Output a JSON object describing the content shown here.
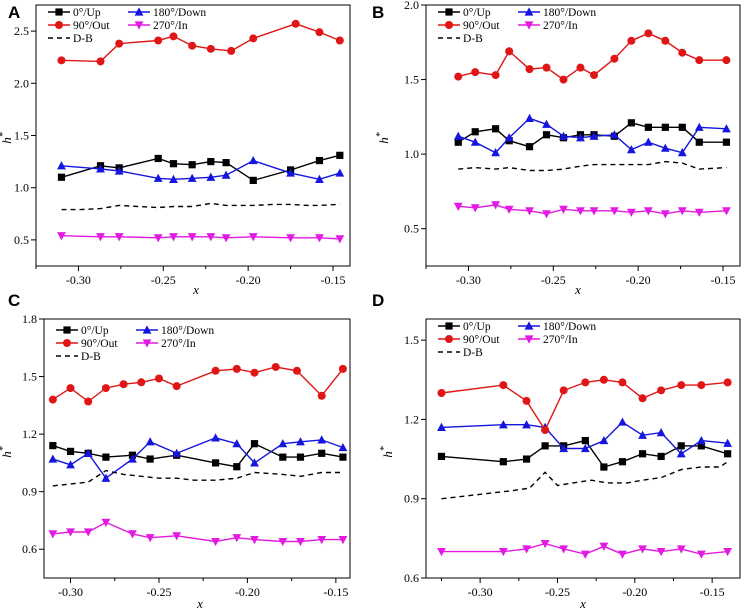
{
  "chart_data": [
    {
      "panel": "A",
      "type": "line",
      "xlabel": "x",
      "ylabel": "h*",
      "xlim": [
        -0.325,
        -0.14
      ],
      "ylim": [
        0.25,
        2.75
      ],
      "xticks": [
        -0.3,
        -0.25,
        -0.2,
        -0.15
      ],
      "xtick_labels": [
        "-0.30",
        "-0.25",
        "-0.20",
        "-0.15"
      ],
      "yticks": [
        0.5,
        1.0,
        1.5,
        2.0,
        2.5
      ],
      "ytick_labels": [
        "0.5",
        "1.0",
        "1.5",
        "2.0",
        "2.5"
      ],
      "legend": [
        "0°/Up",
        "180°/Down",
        "90°/Out",
        "270°/In",
        "D-B"
      ],
      "series": [
        {
          "name": "0°/Up",
          "color": "#000000",
          "marker": "square",
          "x": [
            -0.31,
            -0.287,
            -0.276,
            -0.253,
            -0.244,
            -0.233,
            -0.222,
            -0.213,
            -0.197,
            -0.175,
            -0.158,
            -0.146
          ],
          "y": [
            1.1,
            1.21,
            1.19,
            1.28,
            1.23,
            1.22,
            1.25,
            1.24,
            1.07,
            1.17,
            1.26,
            1.31
          ]
        },
        {
          "name": "180°/Down",
          "color": "#1515e0",
          "marker": "triangle-up",
          "x": [
            -0.31,
            -0.287,
            -0.276,
            -0.253,
            -0.244,
            -0.233,
            -0.222,
            -0.213,
            -0.197,
            -0.175,
            -0.158,
            -0.146
          ],
          "y": [
            1.21,
            1.18,
            1.16,
            1.09,
            1.08,
            1.09,
            1.1,
            1.12,
            1.26,
            1.14,
            1.08,
            1.14
          ]
        },
        {
          "name": "90°/Out",
          "color": "#e01515",
          "marker": "circle",
          "x": [
            -0.31,
            -0.287,
            -0.276,
            -0.253,
            -0.244,
            -0.233,
            -0.222,
            -0.21,
            -0.197,
            -0.172,
            -0.158,
            -0.146
          ],
          "y": [
            2.22,
            2.21,
            2.38,
            2.41,
            2.45,
            2.36,
            2.33,
            2.31,
            2.43,
            2.57,
            2.49,
            2.41
          ]
        },
        {
          "name": "270°/In",
          "color": "#e21ae2",
          "marker": "triangle-down",
          "x": [
            -0.31,
            -0.287,
            -0.276,
            -0.253,
            -0.244,
            -0.233,
            -0.222,
            -0.213,
            -0.197,
            -0.175,
            -0.158,
            -0.146
          ],
          "y": [
            0.54,
            0.53,
            0.53,
            0.52,
            0.53,
            0.53,
            0.53,
            0.52,
            0.53,
            0.52,
            0.52,
            0.51
          ]
        },
        {
          "name": "D-B",
          "color": "#000000",
          "marker": "none",
          "dash": "dashed",
          "x": [
            -0.31,
            -0.299,
            -0.287,
            -0.276,
            -0.265,
            -0.253,
            -0.244,
            -0.233,
            -0.222,
            -0.213,
            -0.205,
            -0.197,
            -0.185,
            -0.175,
            -0.165,
            -0.158,
            -0.146
          ],
          "y": [
            0.79,
            0.79,
            0.8,
            0.83,
            0.82,
            0.81,
            0.82,
            0.82,
            0.85,
            0.83,
            0.83,
            0.83,
            0.84,
            0.84,
            0.83,
            0.83,
            0.84
          ]
        }
      ]
    },
    {
      "panel": "B",
      "type": "line",
      "xlabel": "x",
      "ylabel": "h*",
      "xlim": [
        -0.325,
        -0.14
      ],
      "ylim": [
        0.25,
        2.0
      ],
      "xticks": [
        -0.3,
        -0.25,
        -0.2,
        -0.15
      ],
      "xtick_labels": [
        "-0.30",
        "-0.25",
        "-0.20",
        "-0.15"
      ],
      "yticks": [
        0.5,
        1.0,
        1.5,
        2.0
      ],
      "ytick_labels": [
        "0.5",
        "1.0",
        "1.5",
        "2.0"
      ],
      "legend": [
        "0°/Up",
        "180°/Down",
        "90°/Out",
        "270°/In",
        "D-B"
      ],
      "series": [
        {
          "name": "0°/Up",
          "color": "#000000",
          "marker": "square",
          "x": [
            -0.306,
            -0.296,
            -0.284,
            -0.276,
            -0.264,
            -0.254,
            -0.244,
            -0.234,
            -0.226,
            -0.214,
            -0.204,
            -0.194,
            -0.184,
            -0.174,
            -0.164,
            -0.148
          ],
          "y": [
            1.08,
            1.15,
            1.17,
            1.09,
            1.05,
            1.13,
            1.11,
            1.13,
            1.13,
            1.12,
            1.21,
            1.18,
            1.18,
            1.18,
            1.08,
            1.08
          ]
        },
        {
          "name": "180°/Down",
          "color": "#1515e0",
          "marker": "triangle-up",
          "x": [
            -0.306,
            -0.296,
            -0.284,
            -0.276,
            -0.264,
            -0.254,
            -0.244,
            -0.234,
            -0.226,
            -0.214,
            -0.204,
            -0.194,
            -0.184,
            -0.174,
            -0.164,
            -0.148
          ],
          "y": [
            1.12,
            1.08,
            1.01,
            1.11,
            1.24,
            1.2,
            1.12,
            1.11,
            1.12,
            1.13,
            1.03,
            1.08,
            1.04,
            1.01,
            1.18,
            1.17
          ]
        },
        {
          "name": "90°/Out",
          "color": "#e01515",
          "marker": "circle",
          "x": [
            -0.306,
            -0.296,
            -0.284,
            -0.276,
            -0.264,
            -0.254,
            -0.244,
            -0.234,
            -0.226,
            -0.214,
            -0.204,
            -0.194,
            -0.184,
            -0.174,
            -0.164,
            -0.148
          ],
          "y": [
            1.52,
            1.55,
            1.53,
            1.69,
            1.57,
            1.58,
            1.5,
            1.58,
            1.53,
            1.64,
            1.76,
            1.81,
            1.76,
            1.68,
            1.63,
            1.63
          ]
        },
        {
          "name": "270°/In",
          "color": "#e21ae2",
          "marker": "triangle-down",
          "x": [
            -0.306,
            -0.296,
            -0.284,
            -0.276,
            -0.264,
            -0.254,
            -0.244,
            -0.234,
            -0.226,
            -0.214,
            -0.204,
            -0.194,
            -0.184,
            -0.174,
            -0.164,
            -0.148
          ],
          "y": [
            0.65,
            0.64,
            0.66,
            0.63,
            0.62,
            0.6,
            0.63,
            0.62,
            0.62,
            0.62,
            0.61,
            0.62,
            0.6,
            0.62,
            0.61,
            0.62
          ]
        },
        {
          "name": "D-B",
          "color": "#000000",
          "marker": "none",
          "dash": "dashed",
          "x": [
            -0.306,
            -0.296,
            -0.284,
            -0.276,
            -0.264,
            -0.254,
            -0.244,
            -0.234,
            -0.226,
            -0.214,
            -0.204,
            -0.194,
            -0.184,
            -0.174,
            -0.164,
            -0.148
          ],
          "y": [
            0.9,
            0.91,
            0.9,
            0.91,
            0.89,
            0.89,
            0.9,
            0.92,
            0.93,
            0.93,
            0.93,
            0.93,
            0.95,
            0.94,
            0.9,
            0.91
          ]
        }
      ]
    },
    {
      "panel": "C",
      "type": "line",
      "xlabel": "x",
      "ylabel": "h*",
      "xlim": [
        -0.315,
        -0.142
      ],
      "ylim": [
        0.45,
        1.8
      ],
      "xticks": [
        -0.3,
        -0.25,
        -0.2,
        -0.15
      ],
      "xtick_labels": [
        "-0.30",
        "-0.25",
        "-0.20",
        "-0.15"
      ],
      "yticks": [
        0.6,
        0.9,
        1.2,
        1.5,
        1.8
      ],
      "ytick_labels": [
        "0.6",
        "0.9",
        "1.2",
        "1.5",
        "1.8"
      ],
      "legend": [
        "0°/Up",
        "180°/Down",
        "90°/Out",
        "270°/In",
        "D-B"
      ],
      "series": [
        {
          "name": "0°/Up",
          "color": "#000000",
          "marker": "square",
          "x": [
            -0.31,
            -0.3,
            -0.29,
            -0.28,
            -0.265,
            -0.255,
            -0.24,
            -0.218,
            -0.206,
            -0.196,
            -0.18,
            -0.17,
            -0.158,
            -0.146
          ],
          "y": [
            1.14,
            1.11,
            1.1,
            1.08,
            1.09,
            1.07,
            1.09,
            1.05,
            1.03,
            1.15,
            1.08,
            1.08,
            1.1,
            1.08
          ]
        },
        {
          "name": "180°/Down",
          "color": "#1515e0",
          "marker": "triangle-up",
          "x": [
            -0.31,
            -0.3,
            -0.29,
            -0.28,
            -0.265,
            -0.255,
            -0.24,
            -0.218,
            -0.206,
            -0.196,
            -0.18,
            -0.17,
            -0.158,
            -0.146
          ],
          "y": [
            1.07,
            1.04,
            1.1,
            0.97,
            1.07,
            1.16,
            1.1,
            1.18,
            1.15,
            1.05,
            1.15,
            1.16,
            1.17,
            1.13
          ]
        },
        {
          "name": "90°/Out",
          "color": "#e01515",
          "marker": "circle",
          "x": [
            -0.31,
            -0.3,
            -0.29,
            -0.28,
            -0.27,
            -0.26,
            -0.25,
            -0.24,
            -0.218,
            -0.206,
            -0.196,
            -0.184,
            -0.172,
            -0.158,
            -0.146
          ],
          "y": [
            1.38,
            1.44,
            1.37,
            1.44,
            1.46,
            1.47,
            1.49,
            1.45,
            1.53,
            1.54,
            1.52,
            1.55,
            1.53,
            1.4,
            1.54
          ]
        },
        {
          "name": "270°/In",
          "color": "#e21ae2",
          "marker": "triangle-down",
          "x": [
            -0.31,
            -0.3,
            -0.29,
            -0.28,
            -0.265,
            -0.255,
            -0.24,
            -0.218,
            -0.206,
            -0.196,
            -0.18,
            -0.17,
            -0.158,
            -0.146
          ],
          "y": [
            0.68,
            0.69,
            0.69,
            0.74,
            0.68,
            0.66,
            0.67,
            0.64,
            0.66,
            0.65,
            0.64,
            0.64,
            0.65,
            0.65
          ]
        },
        {
          "name": "D-B",
          "color": "#000000",
          "marker": "none",
          "dash": "dashed",
          "x": [
            -0.31,
            -0.3,
            -0.29,
            -0.28,
            -0.27,
            -0.26,
            -0.25,
            -0.24,
            -0.23,
            -0.218,
            -0.206,
            -0.196,
            -0.18,
            -0.17,
            -0.158,
            -0.146
          ],
          "y": [
            0.93,
            0.94,
            0.95,
            1.01,
            0.99,
            0.98,
            0.97,
            0.97,
            0.96,
            0.96,
            0.97,
            1.0,
            0.99,
            0.98,
            1.0,
            1.0
          ]
        }
      ]
    },
    {
      "panel": "D",
      "type": "line",
      "xlabel": "x",
      "ylabel": "h*",
      "xlim": [
        -0.335,
        -0.132
      ],
      "ylim": [
        0.6,
        1.58
      ],
      "xticks": [
        -0.3,
        -0.25,
        -0.2,
        -0.15
      ],
      "xtick_labels": [
        "-0.30",
        "-0.25",
        "-0.20",
        "-0.15"
      ],
      "yticks": [
        0.6,
        0.9,
        1.2,
        1.5
      ],
      "ytick_labels": [
        "0.6",
        "0.9",
        "1.2",
        "1.5"
      ],
      "legend": [
        "0°/Up",
        "180°/Down",
        "90°/Out",
        "270°/In",
        "D-B"
      ],
      "series": [
        {
          "name": "0°/Up",
          "color": "#000000",
          "marker": "square",
          "x": [
            -0.325,
            -0.285,
            -0.27,
            -0.258,
            -0.246,
            -0.232,
            -0.22,
            -0.208,
            -0.195,
            -0.183,
            -0.17,
            -0.157,
            -0.14
          ],
          "y": [
            1.06,
            1.04,
            1.05,
            1.1,
            1.1,
            1.12,
            1.02,
            1.04,
            1.07,
            1.06,
            1.1,
            1.1,
            1.07
          ]
        },
        {
          "name": "180°/Down",
          "color": "#1515e0",
          "marker": "triangle-up",
          "x": [
            -0.325,
            -0.285,
            -0.27,
            -0.258,
            -0.246,
            -0.232,
            -0.22,
            -0.208,
            -0.195,
            -0.183,
            -0.17,
            -0.157,
            -0.14
          ],
          "y": [
            1.17,
            1.18,
            1.18,
            1.17,
            1.09,
            1.09,
            1.12,
            1.19,
            1.14,
            1.15,
            1.07,
            1.12,
            1.11
          ]
        },
        {
          "name": "90°/Out",
          "color": "#e01515",
          "marker": "circle",
          "x": [
            -0.325,
            -0.285,
            -0.27,
            -0.258,
            -0.246,
            -0.232,
            -0.22,
            -0.208,
            -0.195,
            -0.183,
            -0.17,
            -0.157,
            -0.14
          ],
          "y": [
            1.3,
            1.33,
            1.27,
            1.16,
            1.31,
            1.34,
            1.35,
            1.34,
            1.28,
            1.31,
            1.33,
            1.33,
            1.34
          ]
        },
        {
          "name": "270°/In",
          "color": "#e21ae2",
          "marker": "triangle-down",
          "x": [
            -0.325,
            -0.285,
            -0.27,
            -0.258,
            -0.246,
            -0.232,
            -0.22,
            -0.208,
            -0.195,
            -0.183,
            -0.17,
            -0.157,
            -0.14
          ],
          "y": [
            0.7,
            0.7,
            0.71,
            0.73,
            0.71,
            0.69,
            0.72,
            0.69,
            0.71,
            0.7,
            0.71,
            0.69,
            0.7
          ]
        },
        {
          "name": "D-B",
          "color": "#000000",
          "marker": "none",
          "dash": "dashed",
          "x": [
            -0.325,
            -0.31,
            -0.295,
            -0.28,
            -0.268,
            -0.258,
            -0.25,
            -0.24,
            -0.228,
            -0.218,
            -0.205,
            -0.195,
            -0.183,
            -0.17,
            -0.157,
            -0.145,
            -0.14
          ],
          "y": [
            0.9,
            0.91,
            0.92,
            0.93,
            0.94,
            1.0,
            0.95,
            0.96,
            0.97,
            0.96,
            0.96,
            0.97,
            0.98,
            1.01,
            1.02,
            1.02,
            1.04
          ]
        }
      ]
    }
  ]
}
